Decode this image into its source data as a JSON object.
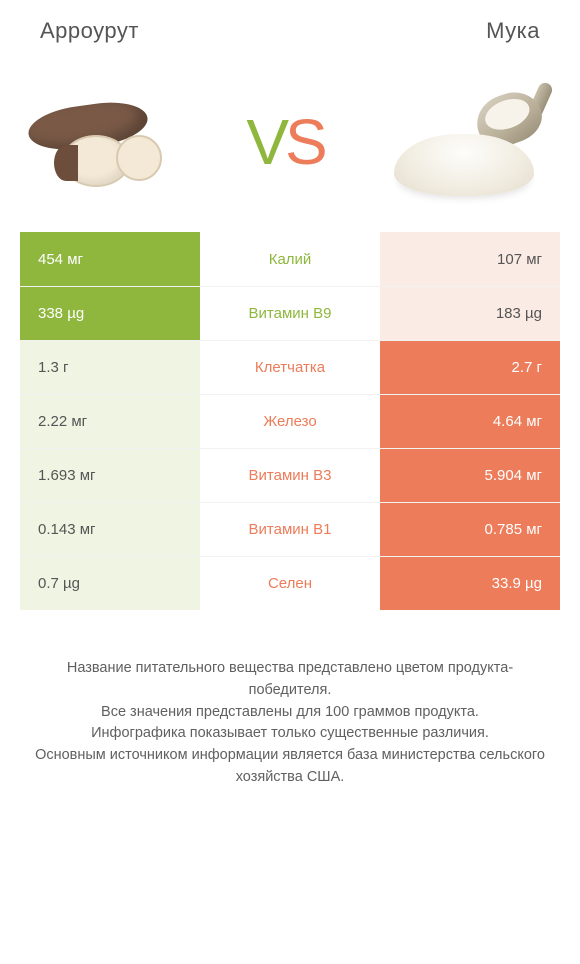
{
  "header": {
    "left_title": "Арроурут",
    "right_title": "Мука"
  },
  "vs": {
    "v": "V",
    "s": "S"
  },
  "colors": {
    "left": "#8fb73e",
    "right": "#ec7c5a",
    "left_pale": "#f0f5e3",
    "right_pale": "#fbebe5",
    "background": "#ffffff",
    "text": "#555555"
  },
  "table": {
    "rows": [
      {
        "winner": "L",
        "left": "454 мг",
        "label": "Калий",
        "right": "107 мг"
      },
      {
        "winner": "L",
        "left": "338 µg",
        "label": "Витамин B9",
        "right": "183 µg"
      },
      {
        "winner": "R",
        "left": "1.3 г",
        "label": "Клетчатка",
        "right": "2.7 г"
      },
      {
        "winner": "R",
        "left": "2.22 мг",
        "label": "Железо",
        "right": "4.64 мг"
      },
      {
        "winner": "R",
        "left": "1.693 мг",
        "label": "Витамин B3",
        "right": "5.904 мг"
      },
      {
        "winner": "R",
        "left": "0.143 мг",
        "label": "Витамин B1",
        "right": "0.785 мг"
      },
      {
        "winner": "R",
        "left": "0.7 µg",
        "label": "Селен",
        "right": "33.9 µg"
      }
    ]
  },
  "footnote": {
    "l1": "Название питательного вещества представлено цветом продукта-победителя.",
    "l2": "Все значения представлены для 100 граммов продукта.",
    "l3": "Инфографика показывает только существенные различия.",
    "l4": "Основным источником информации является база министерства сельского хозяйства США."
  }
}
